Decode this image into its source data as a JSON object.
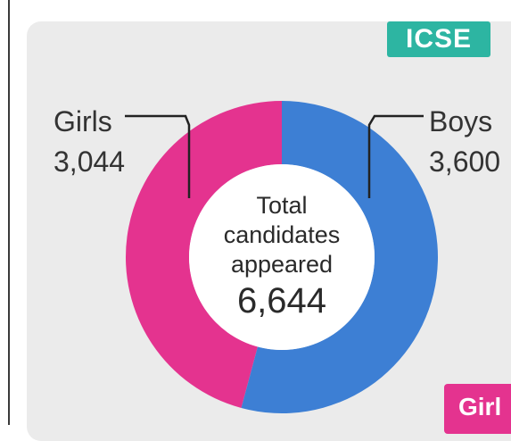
{
  "badges": {
    "top": "ICSE",
    "bottom": "Girl"
  },
  "colors": {
    "girls": "#e4338f",
    "boys": "#3d7fd4",
    "badge_top": "#2db5a2",
    "panel": "#ebebeb"
  },
  "chart_data": {
    "type": "pie",
    "title": "",
    "categories": [
      "Girls",
      "Boys"
    ],
    "values": [
      3044,
      3600
    ],
    "value_labels": [
      "3,044",
      "3,600"
    ],
    "center_text": [
      "Total",
      "candidates",
      "appeared"
    ],
    "center_value": "6,644",
    "legend": "none"
  }
}
